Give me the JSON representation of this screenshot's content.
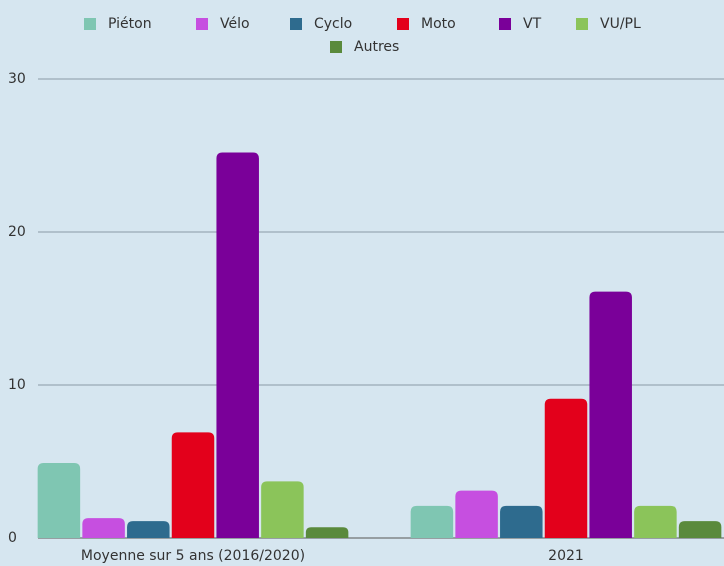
{
  "chart_data": {
    "type": "bar",
    "categories": [
      "Moyenne sur 5 ans (2016/2020)",
      "2021"
    ],
    "series": [
      {
        "name": "Piéton",
        "color": "#7fc6b2",
        "values": [
          4.9,
          2.1
        ]
      },
      {
        "name": "Vélo",
        "color": "#c64fe0",
        "values": [
          1.3,
          3.1
        ]
      },
      {
        "name": "Cyclo",
        "color": "#2e6b8e",
        "values": [
          1.1,
          2.1
        ]
      },
      {
        "name": "Moto",
        "color": "#e3001b",
        "values": [
          6.9,
          9.1
        ]
      },
      {
        "name": "VT",
        "color": "#7a0099",
        "values": [
          25.2,
          16.1
        ]
      },
      {
        "name": "VU/PL",
        "color": "#8bc45a",
        "values": [
          3.7,
          2.1
        ]
      },
      {
        "name": "Autres",
        "color": "#5a8a3c",
        "values": [
          0.7,
          1.1
        ]
      }
    ],
    "ylim": [
      0,
      30
    ],
    "yticks": [
      0,
      10,
      20,
      30
    ],
    "grid": true,
    "legend": "top"
  }
}
